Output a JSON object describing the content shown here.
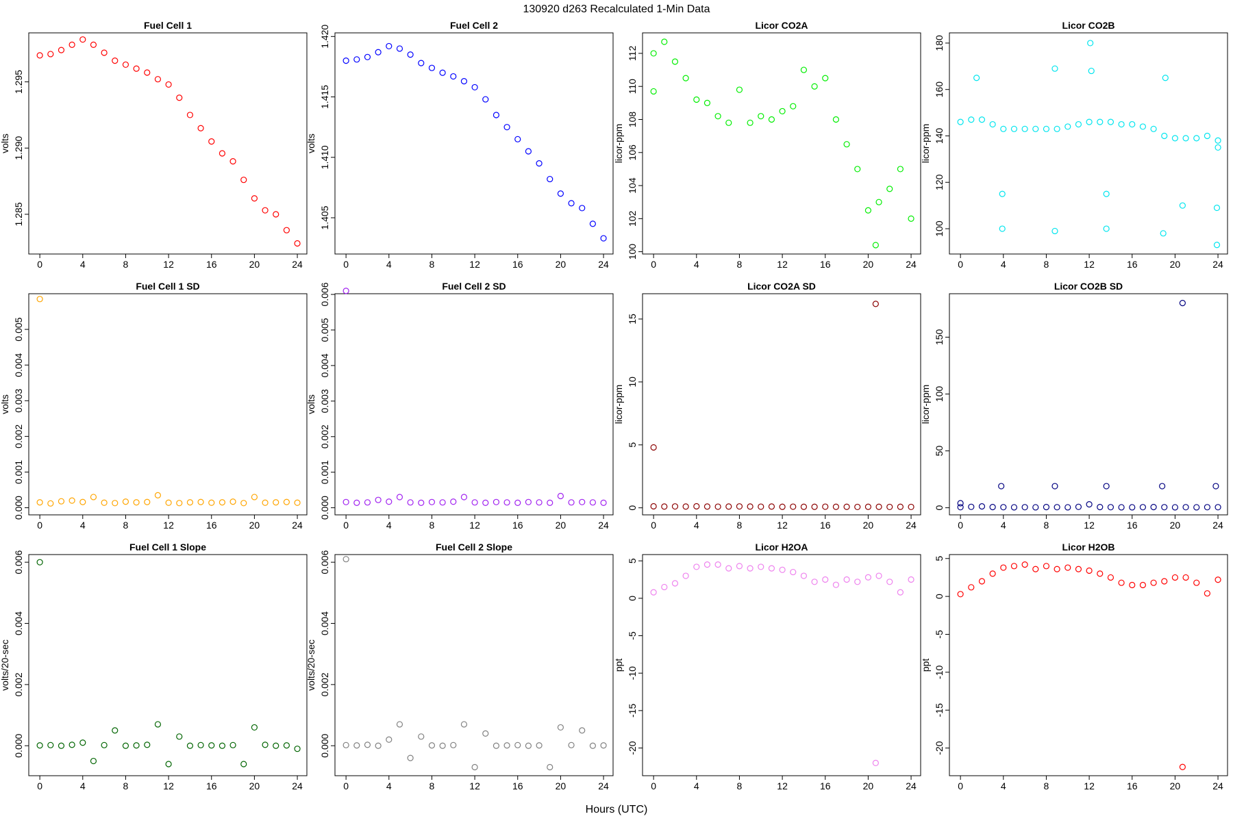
{
  "title": "130920   d263   Recalculated 1-Min Data",
  "xlabel": "Hours (UTC)",
  "chart_data": [
    {
      "type": "scatter",
      "title": "Fuel Cell 1",
      "ylabel": "volts",
      "color": "#ff0000",
      "x": [
        0,
        1,
        2,
        3,
        4,
        5,
        6,
        7,
        8,
        9,
        10,
        11,
        12,
        13,
        14,
        15,
        16,
        17,
        18,
        19,
        20,
        21,
        22,
        23,
        24
      ],
      "values": [
        1.297,
        1.2971,
        1.2974,
        1.2978,
        1.2982,
        1.2978,
        1.2972,
        1.2966,
        1.2963,
        1.296,
        1.2957,
        1.2952,
        1.2948,
        1.2938,
        1.2925,
        1.2915,
        1.2905,
        1.2896,
        1.289,
        1.2876,
        1.2862,
        1.2853,
        1.285,
        1.2838,
        1.2828
      ],
      "xlim": [
        -1.03,
        24.89
      ],
      "ylim": [
        1.282,
        1.2987
      ],
      "xticks": [
        0,
        4,
        8,
        12,
        16,
        20,
        24
      ],
      "yticks": [
        1.285,
        {
          "value": 1.29,
          "label": "1.290"
        },
        1.295
      ]
    },
    {
      "type": "scatter",
      "title": "Fuel Cell 2",
      "ylabel": "volts",
      "color": "#0000ff",
      "x": [
        0,
        1,
        2,
        3,
        4,
        5,
        6,
        7,
        8,
        9,
        10,
        11,
        12,
        13,
        14,
        15,
        16,
        17,
        18,
        19,
        20,
        21,
        22,
        23,
        24
      ],
      "values": [
        1.418,
        1.4181,
        1.4183,
        1.4187,
        1.4192,
        1.419,
        1.4185,
        1.4178,
        1.4174,
        1.417,
        1.4167,
        1.4163,
        1.4158,
        1.4148,
        1.4135,
        1.4125,
        1.4115,
        1.4105,
        1.4095,
        1.4082,
        1.407,
        1.4062,
        1.4058,
        1.4045,
        1.4033
      ],
      "xlim": [
        -1.03,
        24.89
      ],
      "ylim": [
        1.402,
        1.4203
      ],
      "xticks": [
        0,
        4,
        8,
        12,
        16,
        20,
        24
      ],
      "yticks": [
        1.405,
        {
          "value": 1.41,
          "label": "1.410"
        },
        1.415,
        {
          "value": 1.42,
          "label": "1.420"
        }
      ]
    },
    {
      "type": "scatter",
      "title": "Licor CO2A",
      "ylabel": "licor-ppm",
      "color": "#00ee00",
      "x": [
        0,
        1,
        2,
        3,
        4,
        5,
        6,
        7,
        8,
        9,
        10,
        11,
        12,
        13,
        14,
        15,
        16,
        17,
        18,
        19,
        20,
        21,
        22,
        23,
        24,
        0,
        20.7
      ],
      "values": [
        112.0,
        112.7,
        111.5,
        110.5,
        109.2,
        109.0,
        108.2,
        107.8,
        109.8,
        107.8,
        108.2,
        108.0,
        108.5,
        108.8,
        111.0,
        110.0,
        110.5,
        108.0,
        106.5,
        105.0,
        102.5,
        103.0,
        103.8,
        105.0,
        102.0,
        109.7,
        100.4
      ],
      "xlim": [
        -1.03,
        24.89
      ],
      "ylim": [
        99.86,
        113.24
      ],
      "xticks": [
        0,
        4,
        8,
        12,
        16,
        20,
        24
      ],
      "yticks": [
        100,
        102,
        104,
        106,
        108,
        110,
        112
      ]
    },
    {
      "type": "scatter",
      "title": "Licor CO2B",
      "ylabel": "licor-ppm",
      "color": "#00e5ee",
      "x": [
        0,
        1,
        2,
        3,
        4,
        5,
        6,
        7,
        8,
        9,
        10,
        11,
        12,
        13,
        14,
        15,
        16,
        17,
        18,
        19,
        20,
        21,
        22,
        23,
        24,
        1.5,
        3.9,
        3.9,
        8.8,
        8.8,
        12.1,
        12.2,
        13.6,
        13.6,
        18.9,
        19.1,
        20.7,
        23.9,
        23.9,
        24
      ],
      "values": [
        146,
        147,
        147,
        145,
        143,
        143,
        143,
        143,
        143,
        143,
        144,
        145,
        146,
        146,
        146,
        145,
        145,
        144,
        143,
        140,
        139,
        139,
        139,
        140,
        138,
        165,
        115,
        100,
        169,
        99,
        180,
        168,
        115,
        100,
        98,
        165,
        110,
        93,
        109,
        135
      ],
      "xlim": [
        -1.03,
        24.89
      ],
      "ylim": [
        89.1,
        184.4
      ],
      "xticks": [
        0,
        4,
        8,
        12,
        16,
        20,
        24
      ],
      "yticks": [
        100,
        120,
        140,
        160,
        180
      ]
    },
    {
      "type": "scatter",
      "title": "Fuel Cell 1 SD",
      "ylabel": "volts",
      "color": "#ffa500",
      "x": [
        0,
        1,
        2,
        3,
        4,
        5,
        6,
        7,
        8,
        9,
        10,
        11,
        12,
        13,
        14,
        15,
        16,
        17,
        18,
        19,
        20,
        21,
        22,
        23,
        24,
        0
      ],
      "values": [
        0.00015,
        0.00012,
        0.00018,
        0.0002,
        0.00016,
        0.0003,
        0.00014,
        0.00013,
        0.00017,
        0.00015,
        0.00016,
        0.00035,
        0.00014,
        0.00013,
        0.00015,
        0.00016,
        0.00014,
        0.00015,
        0.00017,
        0.00013,
        0.0003,
        0.00014,
        0.00015,
        0.00016,
        0.00014,
        0.00585
      ],
      "xlim": [
        -1.03,
        24.89
      ],
      "ylim": [
        -0.0002,
        0.006
      ],
      "xticks": [
        0,
        4,
        8,
        12,
        16,
        20,
        24
      ],
      "yticks": [
        {
          "value": 0,
          "label": "0.000"
        },
        0.001,
        0.002,
        0.003,
        0.004,
        0.005
      ]
    },
    {
      "type": "scatter",
      "title": "Fuel Cell 2 SD",
      "ylabel": "volts",
      "color": "#a020f0",
      "x": [
        0,
        1,
        2,
        3,
        4,
        5,
        6,
        7,
        8,
        9,
        10,
        11,
        12,
        13,
        14,
        15,
        16,
        17,
        18,
        19,
        20,
        21,
        22,
        23,
        24,
        0
      ],
      "values": [
        0.00016,
        0.00014,
        0.00015,
        0.00022,
        0.00017,
        0.0003,
        0.00015,
        0.00014,
        0.00016,
        0.00015,
        0.00017,
        0.0003,
        0.00015,
        0.00014,
        0.00016,
        0.00015,
        0.00014,
        0.00016,
        0.00015,
        0.00014,
        0.00033,
        0.00015,
        0.00016,
        0.00015,
        0.00014,
        0.0061
      ],
      "xlim": [
        -1.03,
        24.89
      ],
      "ylim": [
        -0.0002,
        0.00602
      ],
      "xticks": [
        0,
        4,
        8,
        12,
        16,
        20,
        24
      ],
      "yticks": [
        {
          "value": 0,
          "label": "0.000"
        },
        0.001,
        0.002,
        0.003,
        0.004,
        0.005,
        0.006
      ]
    },
    {
      "type": "scatter",
      "title": "Licor CO2A SD",
      "ylabel": "licor-ppm",
      "color": "#8b0000",
      "x": [
        0,
        1,
        2,
        3,
        4,
        5,
        6,
        7,
        8,
        9,
        10,
        11,
        12,
        13,
        14,
        15,
        16,
        17,
        18,
        19,
        20,
        21,
        22,
        23,
        24,
        0,
        20.7
      ],
      "values": [
        0.12,
        0.1,
        0.11,
        0.1,
        0.12,
        0.1,
        0.09,
        0.1,
        0.11,
        0.1,
        0.09,
        0.1,
        0.08,
        0.09,
        0.08,
        0.08,
        0.09,
        0.08,
        0.08,
        0.07,
        0.08,
        0.08,
        0.07,
        0.08,
        0.07,
        4.8,
        16.2
      ],
      "xlim": [
        -1.03,
        24.89
      ],
      "ylim": [
        -0.56,
        17.01
      ],
      "xticks": [
        0,
        4,
        8,
        12,
        16,
        20,
        24
      ],
      "yticks": [
        0,
        5,
        10,
        15
      ]
    },
    {
      "type": "scatter",
      "title": "Licor CO2B SD",
      "ylabel": "licor-ppm",
      "color": "#000080",
      "x": [
        0,
        1,
        2,
        3,
        4,
        5,
        6,
        7,
        8,
        9,
        10,
        11,
        12,
        13,
        14,
        15,
        16,
        17,
        18,
        19,
        20,
        21,
        22,
        23,
        24,
        0,
        3.8,
        8.8,
        13.6,
        18.8,
        20.7,
        23.8
      ],
      "values": [
        0.5,
        0.8,
        1.2,
        0.6,
        0.5,
        0.4,
        0.5,
        0.4,
        0.6,
        0.5,
        0.4,
        0.8,
        3,
        0.6,
        0.5,
        0.4,
        0.4,
        0.5,
        0.6,
        0.5,
        0.4,
        0.5,
        0.4,
        0.5,
        0.5,
        4,
        19,
        19,
        19,
        19,
        180,
        19
      ],
      "xlim": [
        -1.03,
        24.89
      ],
      "ylim": [
        -6.25,
        188.2
      ],
      "xticks": [
        0,
        4,
        8,
        12,
        16,
        20,
        24
      ],
      "yticks": [
        0,
        50,
        100,
        150
      ]
    },
    {
      "type": "scatter",
      "title": "Fuel Cell 1 Slope",
      "ylabel": "volts/20-sec",
      "color": "#006400",
      "x": [
        0,
        1,
        2,
        3,
        4,
        5,
        6,
        7,
        8,
        9,
        10,
        11,
        12,
        13,
        14,
        15,
        16,
        17,
        18,
        19,
        20,
        21,
        22,
        23,
        24,
        0
      ],
      "values": [
        1e-05,
        2e-05,
        0,
        3e-05,
        0.0001,
        -0.0005,
        2e-05,
        0.0005,
        0,
        1e-05,
        3e-05,
        0.0007,
        -0.0006,
        0.0003,
        0,
        2e-05,
        1e-05,
        0,
        2e-05,
        -0.0006,
        0.0006,
        3e-05,
        0,
        1e-05,
        -0.0001,
        0.006
      ],
      "xlim": [
        -1.03,
        24.89
      ],
      "ylim": [
        -0.00098,
        0.00625
      ],
      "xticks": [
        0,
        4,
        8,
        12,
        16,
        20,
        24
      ],
      "yticks": [
        {
          "value": 0,
          "label": "0.000"
        },
        0.002,
        0.004,
        0.006
      ]
    },
    {
      "type": "scatter",
      "title": "Fuel Cell 2 Slope",
      "ylabel": "volts/20-sec",
      "color": "#808080",
      "x": [
        0,
        1,
        2,
        3,
        4,
        5,
        6,
        7,
        8,
        9,
        10,
        11,
        12,
        13,
        14,
        15,
        16,
        17,
        18,
        19,
        20,
        21,
        22,
        23,
        24,
        0
      ],
      "values": [
        2e-05,
        1e-05,
        3e-05,
        0,
        0.0002,
        0.0007,
        -0.0004,
        0.0003,
        1e-05,
        0,
        2e-05,
        0.0007,
        -0.0007,
        0.0004,
        0,
        1e-05,
        2e-05,
        0,
        1e-05,
        -0.0007,
        0.0006,
        2e-05,
        0.0005,
        0,
        1e-05,
        0.0061
      ],
      "xlim": [
        -1.03,
        24.89
      ],
      "ylim": [
        -0.00098,
        0.00625
      ],
      "xticks": [
        0,
        4,
        8,
        12,
        16,
        20,
        24
      ],
      "yticks": [
        {
          "value": 0,
          "label": "0.000"
        },
        0.002,
        0.004,
        0.006
      ]
    },
    {
      "type": "scatter",
      "title": "Licor H2OA",
      "ylabel": "ppt",
      "color": "#ee82ee",
      "x": [
        0,
        1,
        2,
        3,
        4,
        5,
        6,
        7,
        8,
        9,
        10,
        11,
        12,
        13,
        14,
        15,
        16,
        17,
        18,
        19,
        20,
        21,
        22,
        23,
        24,
        20.7
      ],
      "values": [
        0.8,
        1.5,
        2.0,
        3.0,
        4.2,
        4.5,
        4.5,
        4.0,
        4.3,
        4.0,
        4.2,
        4.0,
        3.8,
        3.5,
        3.0,
        2.2,
        2.5,
        1.8,
        2.5,
        2.2,
        2.8,
        3.0,
        2.2,
        0.8,
        2.5,
        -22
      ],
      "xlim": [
        -1.03,
        24.89
      ],
      "ylim": [
        -23.7,
        5.84
      ],
      "xticks": [
        0,
        4,
        8,
        12,
        16,
        20,
        24
      ],
      "yticks": [
        -20,
        -15,
        -10,
        -5,
        0,
        5
      ]
    },
    {
      "type": "scatter",
      "title": "Licor H2OB",
      "ylabel": "ppt",
      "color": "#ff0000",
      "x": [
        0,
        1,
        2,
        3,
        4,
        5,
        6,
        7,
        8,
        9,
        10,
        11,
        12,
        13,
        14,
        15,
        16,
        17,
        18,
        19,
        20,
        21,
        22,
        23,
        24,
        20.7
      ],
      "values": [
        0.3,
        1.2,
        2.0,
        3.0,
        3.8,
        4.0,
        4.2,
        3.6,
        4.0,
        3.6,
        3.8,
        3.6,
        3.4,
        3.0,
        2.5,
        1.8,
        1.5,
        1.5,
        1.8,
        2.0,
        2.5,
        2.5,
        1.8,
        0.4,
        2.2,
        -22.5
      ],
      "xlim": [
        -1.03,
        24.89
      ],
      "ylim": [
        -23.65,
        5.52
      ],
      "xticks": [
        0,
        4,
        8,
        12,
        16,
        20,
        24
      ],
      "yticks": [
        -20,
        -15,
        -10,
        -5,
        0,
        5
      ]
    }
  ]
}
